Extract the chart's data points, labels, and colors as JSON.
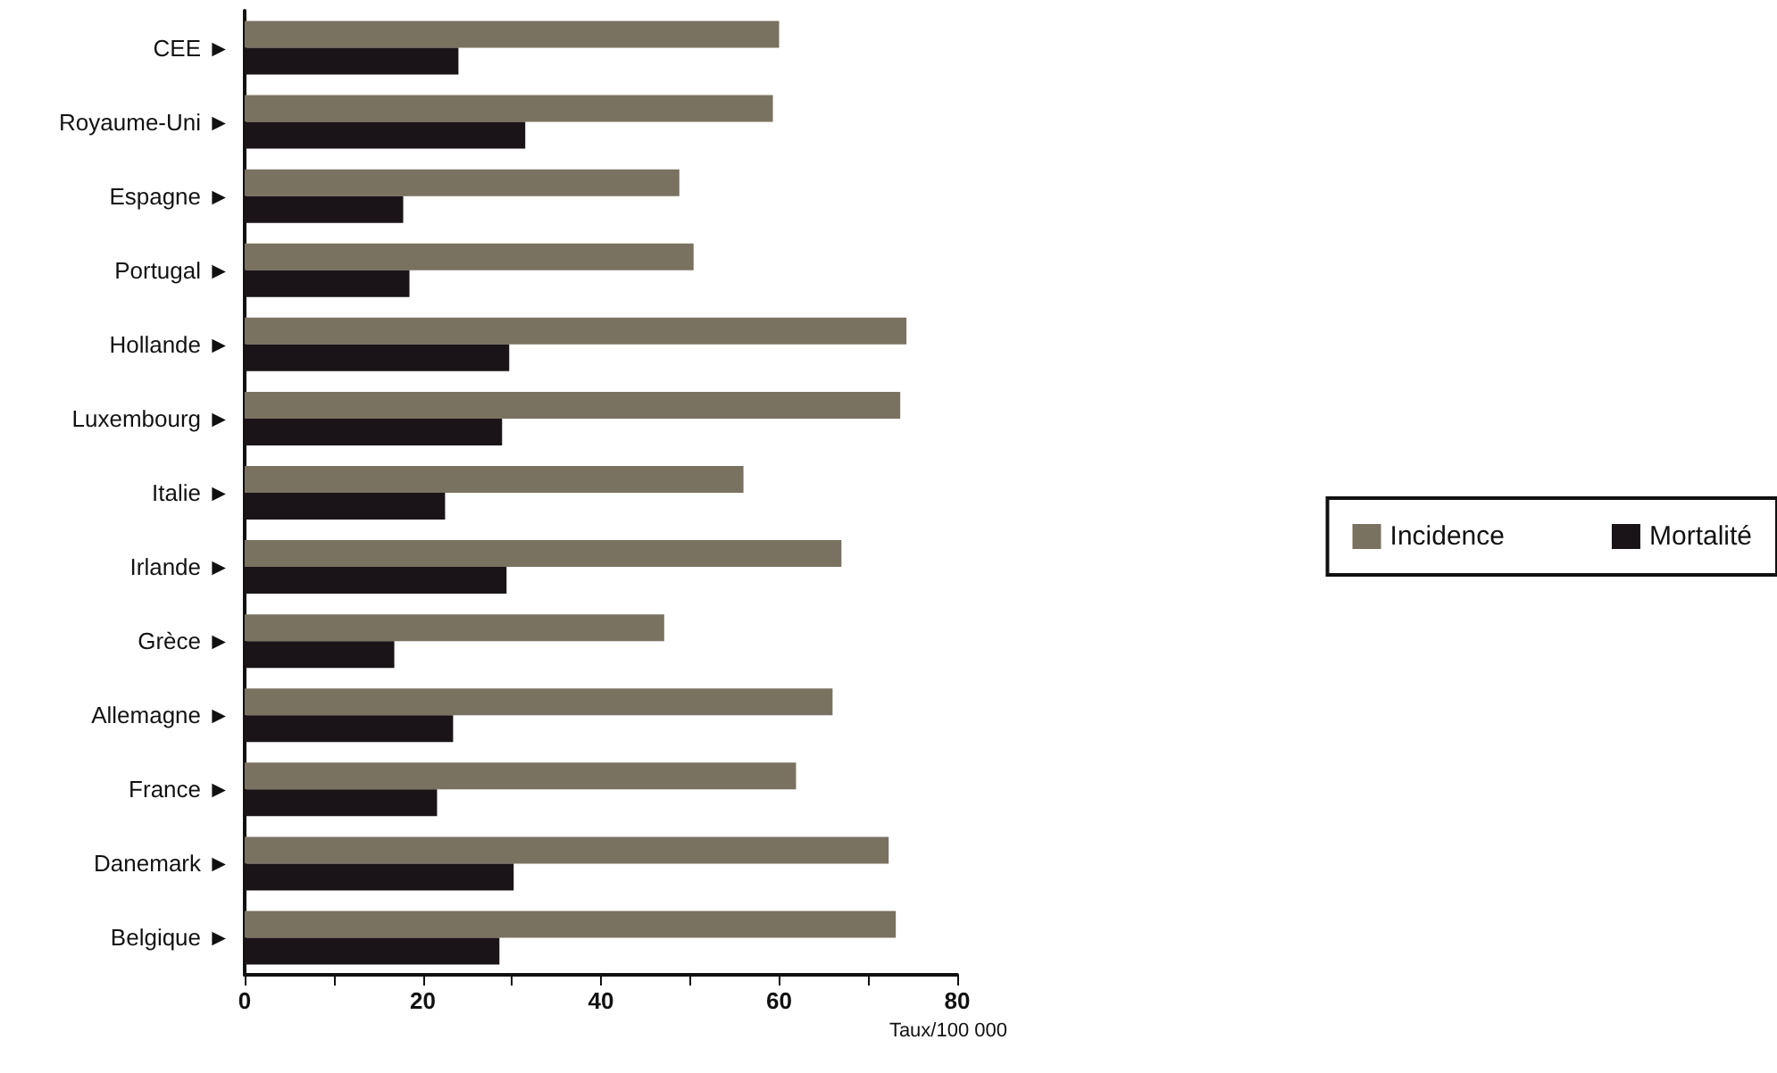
{
  "chart_data": {
    "type": "bar",
    "orientation": "horizontal",
    "xlabel": "Taux/100 000",
    "categories": [
      "CEE ►",
      "Royaume-Uni ►",
      "Espagne ►",
      "Portugal ►",
      "Hollande ►",
      "Luxembourg ►",
      "Italie ►",
      "Irlande ►",
      "Grèce ►",
      "Allemagne ►",
      "France ►",
      "Danemark ►",
      "Belgique ►"
    ],
    "series": [
      {
        "name": "Incidence",
        "color": "#7a7260",
        "values": [
          60,
          59.3,
          48.8,
          50.4,
          74.3,
          73.6,
          56,
          67,
          47.1,
          66,
          61.9,
          72.3,
          73.1
        ]
      },
      {
        "name": "Mortalité",
        "color": "#1a1418",
        "values": [
          24,
          31.5,
          17.8,
          18.5,
          29.7,
          28.9,
          22.5,
          29.4,
          16.8,
          23.4,
          21.6,
          30.2,
          28.6
        ]
      }
    ],
    "xlim": [
      0,
      80
    ],
    "xticks": [
      0,
      {
        "value": 10,
        "label": null
      },
      20,
      {
        "value": 30,
        "label": null
      },
      40,
      {
        "value": 50,
        "label": null
      },
      60,
      {
        "value": 70,
        "label": null
      },
      80
    ],
    "grid": false,
    "legend": "right"
  }
}
